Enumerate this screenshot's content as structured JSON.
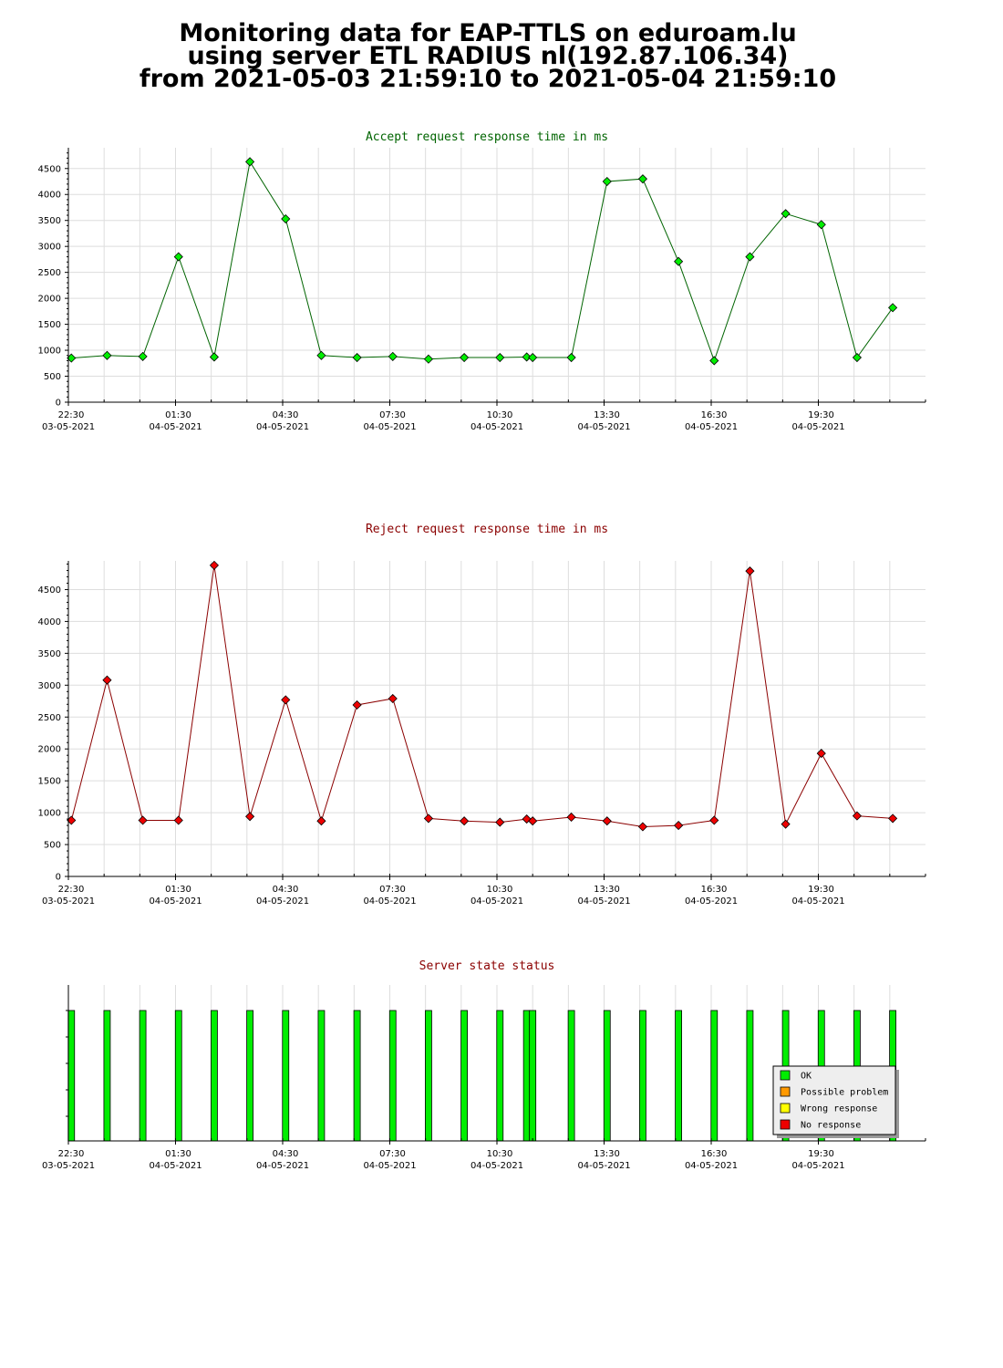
{
  "page": {
    "title_lines": [
      "Monitoring data for EAP-TTLS on eduroam.lu",
      "using server ETL RADIUS nl(192.87.106.34)",
      "from 2021-05-03 21:59:10 to 2021-05-04 21:59:10"
    ]
  },
  "chart_data": [
    {
      "type": "line",
      "title": "Accept request response time in ms",
      "title_color": "#006400",
      "marker_color": "#00ee00",
      "line_color": "#006400",
      "x_ticks": [
        {
          "time": "22:30",
          "date": "03-05-2021"
        },
        {
          "time": "01:30",
          "date": "04-05-2021"
        },
        {
          "time": "04:30",
          "date": "04-05-2021"
        },
        {
          "time": "07:30",
          "date": "04-05-2021"
        },
        {
          "time": "10:30",
          "date": "04-05-2021"
        },
        {
          "time": "13:30",
          "date": "04-05-2021"
        },
        {
          "time": "16:30",
          "date": "04-05-2021"
        },
        {
          "time": "19:30",
          "date": "04-05-2021"
        }
      ],
      "xlim": [
        "2021-05-03 22:30",
        "2021-05-04 22:30"
      ],
      "ylim": [
        0,
        4900
      ],
      "y_ticks": [
        0,
        500,
        1000,
        1500,
        2000,
        2500,
        3000,
        3500,
        4000,
        4500
      ],
      "grid": true,
      "x": [
        "2021-05-03 22:35",
        "2021-05-03 23:35",
        "2021-05-04 00:35",
        "2021-05-04 01:35",
        "2021-05-04 02:35",
        "2021-05-04 03:35",
        "2021-05-04 04:35",
        "2021-05-04 05:35",
        "2021-05-04 06:35",
        "2021-05-04 07:35",
        "2021-05-04 08:35",
        "2021-05-04 09:35",
        "2021-05-04 10:35",
        "2021-05-04 11:20",
        "2021-05-04 11:30",
        "2021-05-04 12:35",
        "2021-05-04 13:35",
        "2021-05-04 14:35",
        "2021-05-04 15:35",
        "2021-05-04 16:35",
        "2021-05-04 17:35",
        "2021-05-04 18:35",
        "2021-05-04 19:35",
        "2021-05-04 20:35",
        "2021-05-04 21:35"
      ],
      "values": [
        850,
        900,
        880,
        2800,
        870,
        4630,
        3530,
        900,
        860,
        880,
        830,
        860,
        860,
        870,
        860,
        860,
        4250,
        4300,
        2710,
        800,
        2800,
        3630,
        3420,
        860,
        1820
      ]
    },
    {
      "type": "line",
      "title": "Reject request response time in ms",
      "title_color": "#8b0000",
      "marker_color": "#ee0000",
      "line_color": "#8b0000",
      "x_ticks": [
        {
          "time": "22:30",
          "date": "03-05-2021"
        },
        {
          "time": "01:30",
          "date": "04-05-2021"
        },
        {
          "time": "04:30",
          "date": "04-05-2021"
        },
        {
          "time": "07:30",
          "date": "04-05-2021"
        },
        {
          "time": "10:30",
          "date": "04-05-2021"
        },
        {
          "time": "13:30",
          "date": "04-05-2021"
        },
        {
          "time": "16:30",
          "date": "04-05-2021"
        },
        {
          "time": "19:30",
          "date": "04-05-2021"
        }
      ],
      "xlim": [
        "2021-05-03 22:30",
        "2021-05-04 22:30"
      ],
      "ylim": [
        0,
        4950
      ],
      "y_ticks": [
        0,
        500,
        1000,
        1500,
        2000,
        2500,
        3000,
        3500,
        4000,
        4500
      ],
      "grid": true,
      "x": [
        "2021-05-03 22:35",
        "2021-05-03 23:35",
        "2021-05-04 00:35",
        "2021-05-04 01:35",
        "2021-05-04 02:35",
        "2021-05-04 03:35",
        "2021-05-04 04:35",
        "2021-05-04 05:35",
        "2021-05-04 06:35",
        "2021-05-04 07:35",
        "2021-05-04 08:35",
        "2021-05-04 09:35",
        "2021-05-04 10:35",
        "2021-05-04 11:20",
        "2021-05-04 11:30",
        "2021-05-04 12:35",
        "2021-05-04 13:35",
        "2021-05-04 14:35",
        "2021-05-04 15:35",
        "2021-05-04 16:35",
        "2021-05-04 17:35",
        "2021-05-04 18:35",
        "2021-05-04 19:35",
        "2021-05-04 20:35",
        "2021-05-04 21:35"
      ],
      "values": [
        880,
        3080,
        880,
        880,
        4880,
        940,
        2770,
        870,
        2690,
        2790,
        910,
        870,
        850,
        900,
        870,
        930,
        870,
        780,
        800,
        880,
        4790,
        820,
        1930,
        950,
        910
      ]
    },
    {
      "type": "bar",
      "title": "Server state status",
      "title_color": "#8b0000",
      "xlim": [
        "2021-05-03 22:30",
        "2021-05-04 22:30"
      ],
      "x_ticks": [
        {
          "time": "22:30",
          "date": "03-05-2021"
        },
        {
          "time": "01:30",
          "date": "04-05-2021"
        },
        {
          "time": "04:30",
          "date": "04-05-2021"
        },
        {
          "time": "07:30",
          "date": "04-05-2021"
        },
        {
          "time": "10:30",
          "date": "04-05-2021"
        },
        {
          "time": "13:30",
          "date": "04-05-2021"
        },
        {
          "time": "16:30",
          "date": "04-05-2021"
        },
        {
          "time": "19:30",
          "date": "04-05-2021"
        }
      ],
      "x": [
        "2021-05-03 22:35",
        "2021-05-03 23:35",
        "2021-05-04 00:35",
        "2021-05-04 01:35",
        "2021-05-04 02:35",
        "2021-05-04 03:35",
        "2021-05-04 04:35",
        "2021-05-04 05:35",
        "2021-05-04 06:35",
        "2021-05-04 07:35",
        "2021-05-04 08:35",
        "2021-05-04 09:35",
        "2021-05-04 10:35",
        "2021-05-04 11:20",
        "2021-05-04 11:30",
        "2021-05-04 12:35",
        "2021-05-04 13:35",
        "2021-05-04 14:35",
        "2021-05-04 15:35",
        "2021-05-04 16:35",
        "2021-05-04 17:35",
        "2021-05-04 18:35",
        "2021-05-04 19:35",
        "2021-05-04 20:35",
        "2021-05-04 21:35"
      ],
      "status": [
        "OK",
        "OK",
        "OK",
        "OK",
        "OK",
        "OK",
        "OK",
        "OK",
        "OK",
        "OK",
        "OK",
        "OK",
        "OK",
        "OK",
        "OK",
        "OK",
        "OK",
        "OK",
        "OK",
        "OK",
        "OK",
        "OK",
        "OK",
        "OK",
        "OK"
      ],
      "legend": [
        {
          "label": "OK",
          "color": "#00ee00"
        },
        {
          "label": "Possible problem",
          "color": "#ff9900"
        },
        {
          "label": "Wrong response",
          "color": "#ffff00"
        },
        {
          "label": "No response",
          "color": "#ee0000"
        }
      ],
      "legend_position": "bottom-right"
    }
  ]
}
